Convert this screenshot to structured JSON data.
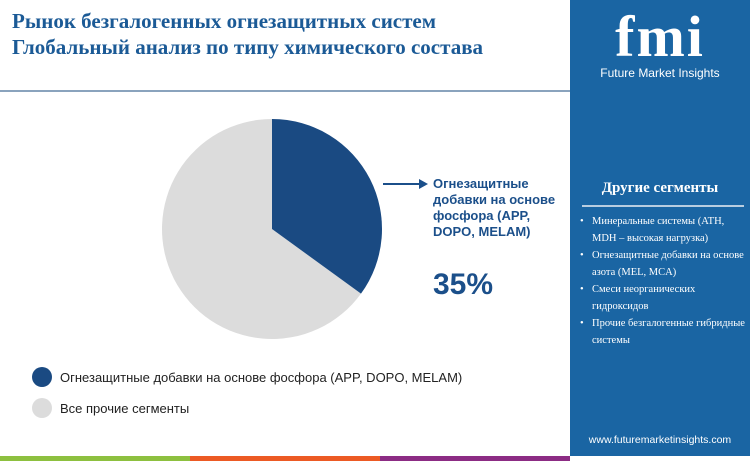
{
  "title": {
    "line1": "Рынок безгалогенных огнезащитных систем",
    "line2": "Глобальный анализ по типу химического состава"
  },
  "logo": {
    "text": "fmi",
    "subtitle": "Future Market Insights"
  },
  "panel": {
    "title": "Другие сегменты",
    "items": [
      "Минеральные системы (ATH, MDH – высокая нагрузка)",
      "Огнезащитные добавки на основе азота (MEL, MCA)",
      "Смеси неорганических гидроксидов",
      "Прочие безгалогенные гибридные системы"
    ],
    "url": "www.futuremarketinsights.com"
  },
  "colors": {
    "primary": "#1a4a82",
    "other": "#dcdcdc",
    "panel": "#1a65a3",
    "bar": [
      "#8dc03f",
      "#ec5a24",
      "#8c2c84"
    ]
  },
  "chart_data": {
    "type": "pie",
    "categories": [
      "Огнезащитные добавки на основе фосфора (APP, DOPO, MELAM)",
      "Все прочие сегменты"
    ],
    "values": [
      35,
      65
    ],
    "callout": {
      "label": "Огнезащитные добавки на основе фосфора (APP, DOPO, MELAM)",
      "value": "35%"
    },
    "legend": [
      "Огнезащитные добавки на основе фосфора (APP, DOPO, MELAM)",
      "Все прочие сегменты"
    ],
    "legend_placement": "bottom-left"
  }
}
